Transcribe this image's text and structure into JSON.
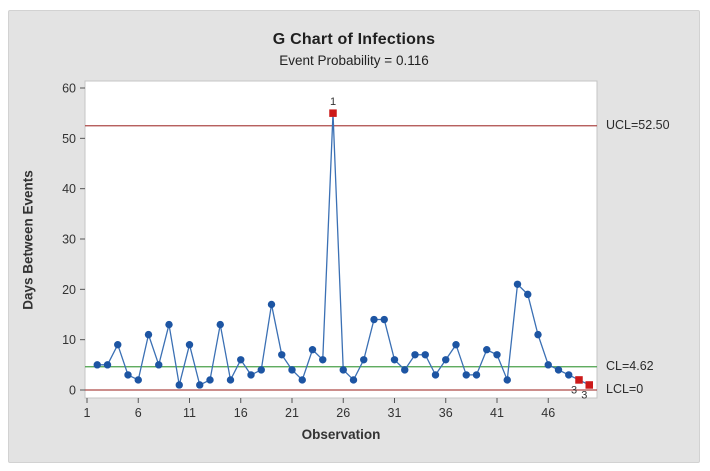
{
  "chart_data": {
    "type": "line",
    "title": "G Chart of Infections",
    "subtitle": "Event Probability = 0.116",
    "xlabel": "Observation",
    "ylabel": "Days Between Events",
    "ylim": [
      0,
      60
    ],
    "yticks": [
      0,
      10,
      20,
      30,
      40,
      50,
      60
    ],
    "xticks": [
      1,
      6,
      11,
      16,
      21,
      26,
      31,
      36,
      41,
      46
    ],
    "grid": false,
    "legend_position": "none",
    "points": [
      [
        2,
        5
      ],
      [
        3,
        5
      ],
      [
        4,
        9
      ],
      [
        5,
        3
      ],
      [
        6,
        2
      ],
      [
        7,
        11
      ],
      [
        8,
        5
      ],
      [
        9,
        13
      ],
      [
        10,
        1
      ],
      [
        11,
        9
      ],
      [
        12,
        1
      ],
      [
        13,
        2
      ],
      [
        14,
        13
      ],
      [
        15,
        2
      ],
      [
        16,
        6
      ],
      [
        17,
        3
      ],
      [
        18,
        4
      ],
      [
        19,
        17
      ],
      [
        20,
        7
      ],
      [
        21,
        4
      ],
      [
        22,
        2
      ],
      [
        23,
        8
      ],
      [
        24,
        6
      ],
      [
        25,
        55
      ],
      [
        26,
        4
      ],
      [
        27,
        2
      ],
      [
        28,
        6
      ],
      [
        29,
        14
      ],
      [
        30,
        14
      ],
      [
        31,
        6
      ],
      [
        32,
        4
      ],
      [
        33,
        7
      ],
      [
        34,
        7
      ],
      [
        35,
        3
      ],
      [
        36,
        6
      ],
      [
        37,
        9
      ],
      [
        38,
        3
      ],
      [
        39,
        3
      ],
      [
        40,
        8
      ],
      [
        41,
        7
      ],
      [
        42,
        2
      ],
      [
        43,
        21
      ],
      [
        44,
        19
      ],
      [
        45,
        11
      ],
      [
        46,
        5
      ],
      [
        47,
        4
      ],
      [
        48,
        3
      ],
      [
        49,
        2
      ],
      [
        50,
        1
      ]
    ],
    "upper_control_limit": {
      "value": 52.5,
      "label": "UCL=52.50"
    },
    "center_line": {
      "value": 4.62,
      "label": "CL=4.62"
    },
    "lower_control_limit": {
      "value": 0,
      "label": "LCL=0"
    },
    "flagged_points": [
      {
        "obs": 25,
        "value": 55,
        "test": "1",
        "label_position": "above"
      },
      {
        "obs": 49,
        "value": 2,
        "test": "3",
        "label_position": "below"
      },
      {
        "obs": 50,
        "value": 1,
        "test": "3",
        "label_position": "below"
      }
    ],
    "colors": {
      "line": "#3b70b4",
      "marker": "#1d55a3",
      "limit_line": "#ad4a48",
      "center_line": "#4aa14a",
      "flag_marker": "#cc1a1a",
      "flag_label": "#333333",
      "panel_bg": "#e3e3e3",
      "plot_bg": "#ffffff",
      "plot_border": "#c4c4c4"
    }
  }
}
